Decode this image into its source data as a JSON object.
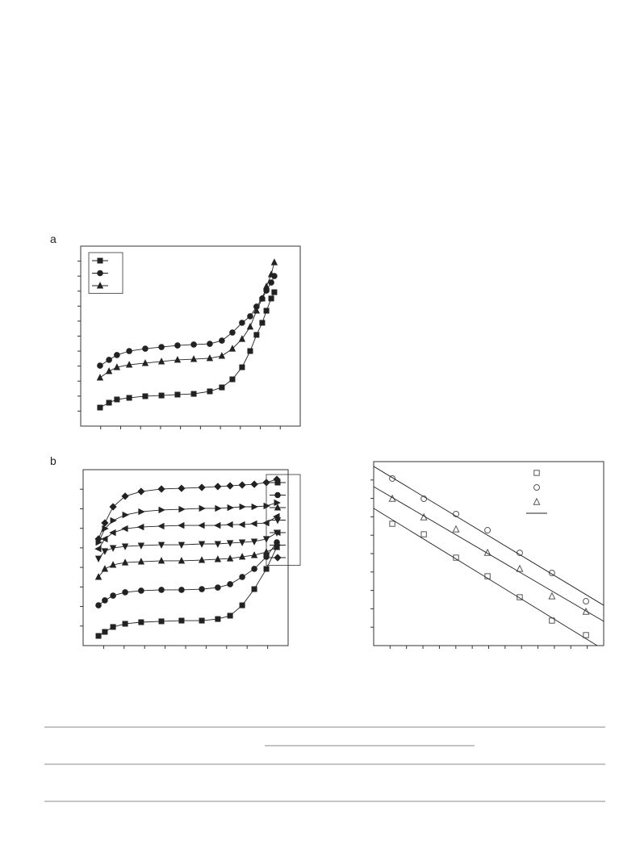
{
  "labels": [
    "a",
    "b"
  ],
  "chart_data": [
    {
      "type": "line",
      "xlim": [
        0,
        100
      ],
      "ylim": [
        0,
        100
      ],
      "x": [
        8.8,
        12.9,
        16.5,
        22.1,
        29.4,
        36.8,
        44.1,
        51.5,
        58.8,
        64.3,
        69.1,
        73.5,
        77.2,
        80.1,
        82.7,
        84.6,
        86.8,
        88.2
      ],
      "series": [
        {
          "marker": "square",
          "color": "#222222",
          "values": [
            10.3,
            13.0,
            14.8,
            15.7,
            16.6,
            17.0,
            17.5,
            17.9,
            19.3,
            21.5,
            26.0,
            32.7,
            41.7,
            50.7,
            57.4,
            64.1,
            70.9,
            74.4
          ]
        },
        {
          "marker": "circle",
          "color": "#222222",
          "values": [
            33.6,
            36.8,
            39.5,
            41.7,
            43.0,
            43.9,
            44.8,
            45.3,
            45.7,
            47.5,
            52.0,
            57.4,
            61.0,
            66.4,
            70.9,
            75.3,
            79.8,
            83.4
          ]
        },
        {
          "marker": "up",
          "color": "#222222",
          "values": [
            26.9,
            30.5,
            32.7,
            34.1,
            35.0,
            35.9,
            36.8,
            37.2,
            37.7,
            39.0,
            43.0,
            48.4,
            55.2,
            64.1,
            70.9,
            77.6,
            84.3,
            91.0
          ]
        }
      ]
    },
    {
      "type": "line",
      "xlim": [
        0,
        100
      ],
      "ylim": [
        0,
        100
      ],
      "x": [
        7.5,
        10.6,
        14.6,
        20.5,
        28.3,
        38.2,
        48.0,
        57.9,
        65.7,
        71.7,
        77.6,
        83.5,
        89.4,
        94.5
      ],
      "series": [
        {
          "marker": "square",
          "color": "#222222",
          "values": [
            5.5,
            7.8,
            10.6,
            12.4,
            13.3,
            13.8,
            14.2,
            14.2,
            15.1,
            17.0,
            22.9,
            32.1,
            43.6,
            56.0
          ]
        },
        {
          "marker": "circle",
          "color": "#222222",
          "values": [
            22.9,
            25.7,
            28.4,
            30.3,
            31.2,
            31.7,
            31.7,
            32.1,
            33.0,
            34.9,
            39.0,
            43.6,
            50.5,
            58.7
          ]
        },
        {
          "marker": "up",
          "color": "#222222",
          "values": [
            39.0,
            43.6,
            45.9,
            47.2,
            47.7,
            48.2,
            48.2,
            48.6,
            49.1,
            49.5,
            50.5,
            51.4,
            53.2,
            56.0
          ]
        },
        {
          "marker": "down",
          "color": "#222222",
          "values": [
            49.5,
            53.7,
            55.5,
            56.4,
            56.9,
            57.3,
            57.3,
            57.8,
            57.8,
            58.3,
            58.7,
            59.2,
            60.6,
            64.2
          ]
        },
        {
          "marker": "left",
          "color": "#222222",
          "values": [
            55.0,
            60.6,
            64.2,
            66.5,
            67.4,
            67.9,
            68.3,
            68.3,
            68.3,
            68.8,
            68.8,
            69.3,
            69.7,
            73.4
          ]
        },
        {
          "marker": "right",
          "color": "#222222",
          "values": [
            58.7,
            66.5,
            71.1,
            74.3,
            76.1,
            77.1,
            77.5,
            78.0,
            78.0,
            78.4,
            78.9,
            78.9,
            79.4,
            81.2
          ]
        },
        {
          "marker": "diamond",
          "color": "#222222",
          "values": [
            60.6,
            69.7,
            78.9,
            84.9,
            87.6,
            89.0,
            89.4,
            89.9,
            90.4,
            90.8,
            91.3,
            91.7,
            92.7,
            94.5
          ]
        }
      ]
    },
    {
      "type": "scatter",
      "xlim": [
        0,
        100
      ],
      "ylim": [
        0,
        100
      ],
      "x": [
        8.1,
        21.8,
        35.8,
        49.5,
        63.5,
        77.5,
        92.3
      ],
      "series": [
        {
          "marker": "square",
          "color": "#555555",
          "values": [
            66.2,
            60.5,
            47.8,
            37.7,
            26.3,
            13.6,
            5.7
          ]
        },
        {
          "marker": "circle",
          "color": "#555555",
          "values": [
            90.8,
            79.8,
            71.5,
            62.7,
            50.4,
            39.5,
            24.1
          ]
        },
        {
          "marker": "up",
          "color": "#555555",
          "values": [
            79.8,
            69.7,
            63.2,
            50.4,
            41.7,
            26.8,
            18.4
          ]
        }
      ],
      "fit_lines": [
        {
          "x": [
            0,
            97.2
          ],
          "values": [
            74.6,
            0
          ]
        },
        {
          "x": [
            0,
            100
          ],
          "values": [
            97.4,
            21.9
          ]
        },
        {
          "x": [
            0,
            100
          ],
          "values": [
            86.4,
            13.2
          ]
        }
      ]
    }
  ]
}
